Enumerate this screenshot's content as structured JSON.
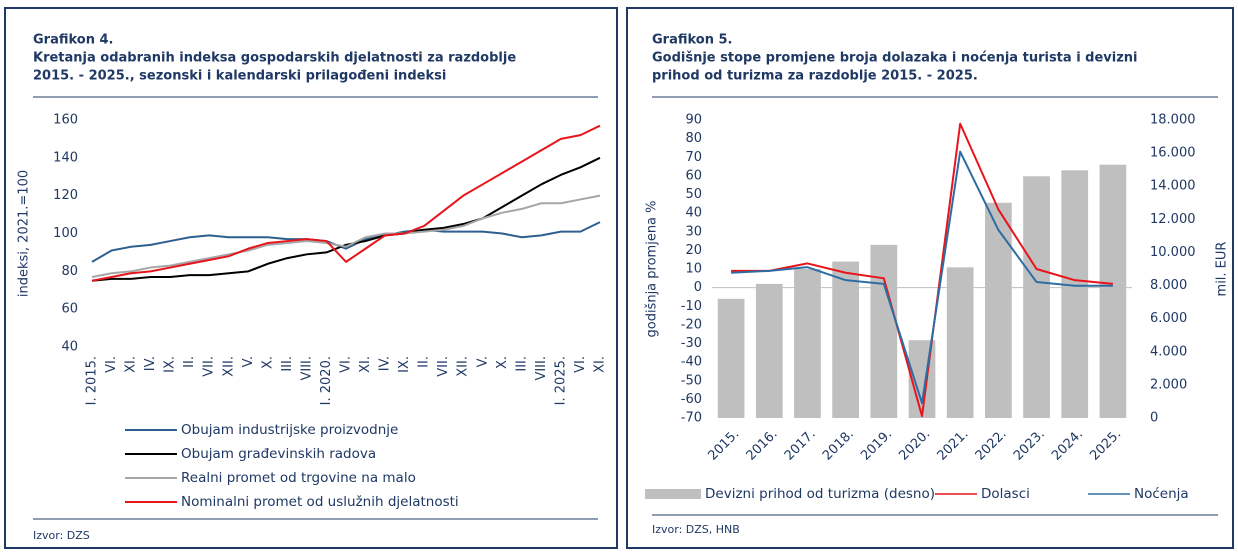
{
  "chart_data": [
    {
      "type": "line",
      "title": "Grafikon 4.",
      "subtitle": [
        "Kretanja odabranih indeksa gospodarskih djelatnosti za razdoblje",
        "2015. - 2025., sezonski i kalendarski prilagođeni indeksi"
      ],
      "ylabel": "indeksi, 2021.=100",
      "source": "Izvor: DZS",
      "categories": [
        "I. 2015.",
        "VI.",
        "XI.",
        "IV.",
        "IX.",
        "II.",
        "VII.",
        "XII.",
        "V.",
        "X.",
        "III.",
        "VIII.",
        "I. 2020.",
        "VI.",
        "XI.",
        "IV.",
        "IX.",
        "II.",
        "VII.",
        "XII.",
        "V.",
        "X.",
        "III.",
        "VIII.",
        "I. 2025.",
        "VI.",
        "XI."
      ],
      "ylim": [
        40,
        160
      ],
      "yticks": [
        40,
        60,
        80,
        100,
        120,
        140,
        160
      ],
      "grid": false,
      "series": [
        {
          "name": "Obujam industrijske proizvodnje",
          "color": "#2e5f8f",
          "values": [
            85,
            91,
            93,
            94,
            96,
            98,
            99,
            98,
            98,
            98,
            97,
            97,
            96,
            92,
            97,
            99,
            101,
            102,
            101,
            101,
            101,
            100,
            98,
            99,
            101,
            101,
            106
          ]
        },
        {
          "name": "Obujam građevinskih radova",
          "color": "#000000",
          "values": [
            75,
            76,
            76,
            77,
            77,
            78,
            78,
            79,
            80,
            84,
            87,
            89,
            90,
            94,
            96,
            99,
            100,
            102,
            103,
            105,
            108,
            114,
            120,
            126,
            131,
            135,
            140
          ]
        },
        {
          "name": "Realni promet od trgovine na malo",
          "color": "#a6a6a6",
          "values": [
            77,
            79,
            80,
            82,
            83,
            85,
            87,
            89,
            91,
            94,
            95,
            96,
            95,
            93,
            98,
            100,
            100,
            101,
            102,
            104,
            108,
            111,
            113,
            116,
            116,
            118,
            120
          ]
        },
        {
          "name": "Nominalni promet od uslužnih djelatnosti",
          "color": "#e8141b",
          "values": [
            75,
            77,
            79,
            80,
            82,
            84,
            86,
            88,
            92,
            95,
            96,
            97,
            96,
            85,
            92,
            99,
            100,
            104,
            112,
            120,
            126,
            132,
            138,
            144,
            150,
            152,
            157
          ]
        }
      ]
    },
    {
      "type": "combo",
      "title": "Grafikon 5.",
      "subtitle": [
        "Godišnje stope promjene broja dolazaka i noćenja turista i devizni",
        "prihod od turizma za razdoblje 2015. - 2025."
      ],
      "ylabel": "godišnja promjena %",
      "y2label": "mil. EUR",
      "source": "Izvor: DZS, HNB",
      "categories": [
        "2015.",
        "2016.",
        "2017.",
        "2018.",
        "2019.",
        "2020.",
        "2021.",
        "2022.",
        "2023.",
        "2024.",
        "2025."
      ],
      "ylim": [
        -70,
        90
      ],
      "yticks": [
        -70,
        -60,
        -50,
        -40,
        -30,
        -20,
        -10,
        0,
        10,
        20,
        30,
        40,
        50,
        60,
        70,
        80,
        90
      ],
      "y2lim": [
        0,
        18000
      ],
      "y2ticks": [
        0,
        {
          "value": 2000,
          "label": "2.000"
        },
        {
          "value": 4000,
          "label": "4.000"
        },
        {
          "value": 6000,
          "label": "6.000"
        },
        {
          "value": 8000,
          "label": "8.000"
        },
        {
          "value": 10000,
          "label": "10.000"
        },
        {
          "value": 12000,
          "label": "12.000"
        },
        {
          "value": 14000,
          "label": "14.000"
        },
        {
          "value": 16000,
          "label": "16.000"
        },
        {
          "value": 18000,
          "label": "18.000"
        }
      ],
      "grid": false,
      "series": [
        {
          "name": "Devizni prihod od turizma (desno)",
          "type": "bar",
          "axis": "y2",
          "color": "#bfbfbf",
          "values": [
            7200,
            8100,
            9000,
            9450,
            10460,
            4700,
            9100,
            13000,
            14600,
            14960,
            15300
          ]
        },
        {
          "name": "Dolasci",
          "type": "line",
          "color": "#e8141b",
          "values": [
            9,
            9,
            13,
            8,
            5,
            -69,
            88,
            42,
            10,
            4,
            2
          ]
        },
        {
          "name": "Noćenja",
          "type": "line",
          "color": "#2e6da4",
          "values": [
            8,
            9,
            11,
            4,
            2,
            -62,
            73,
            31,
            3,
            1,
            1
          ]
        }
      ]
    }
  ]
}
